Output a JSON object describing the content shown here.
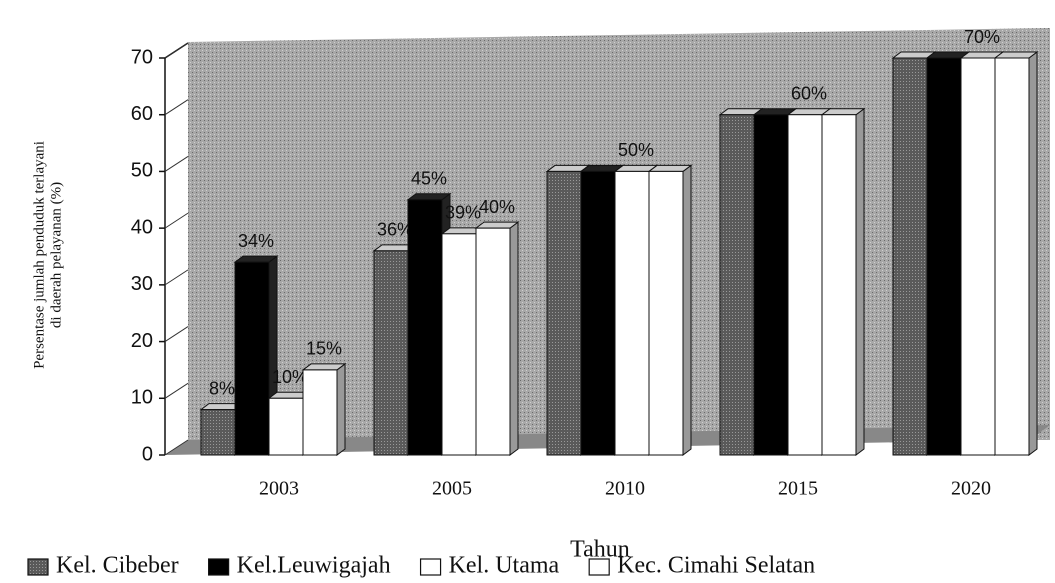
{
  "chart_data": {
    "type": "bar",
    "categories": [
      "2003",
      "2005",
      "2010",
      "2015",
      "2020"
    ],
    "series": [
      {
        "name": "Kel. Cibeber",
        "color": "#5a5a5a",
        "values": [
          8,
          36,
          50,
          60,
          70
        ],
        "value_labels": [
          "8%",
          "36%",
          null,
          null,
          null
        ]
      },
      {
        "name": "Kel.Leuwigajah",
        "color": "#000000",
        "values": [
          34,
          45,
          50,
          60,
          70
        ],
        "value_labels": [
          "34%",
          "45%",
          null,
          null,
          null
        ]
      },
      {
        "name": "Kel. Utama",
        "color": "#ffffff",
        "values": [
          10,
          39,
          50,
          60,
          70
        ],
        "value_labels": [
          "10%",
          "39%",
          "50%",
          "60%",
          "70%"
        ]
      },
      {
        "name": "Kec. Cimahi Selatan",
        "color": "#ffffff",
        "values": [
          15,
          40,
          50,
          60,
          70
        ],
        "value_labels": [
          "15%",
          "40%",
          null,
          null,
          null
        ]
      }
    ],
    "x_label": "Tahun",
    "y_label": [
      "Persentase jumlah penduduk terlayani",
      "di daerah pelayanan (%)"
    ],
    "ylim": [
      0,
      70
    ],
    "yticks": [
      0,
      10,
      20,
      30,
      40,
      50,
      60,
      70
    ],
    "grid": true,
    "legend": "bottom"
  }
}
